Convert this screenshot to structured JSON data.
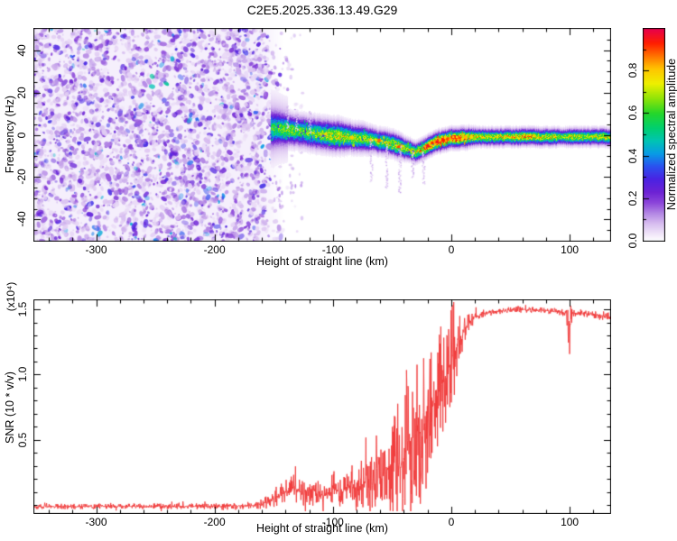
{
  "title": "C2E5.2025.336.13.49.G29",
  "colors": {
    "signal_red": "#f13a3a",
    "axis": "#000000",
    "background": "#ffffff",
    "noise_wash": "#f5effc"
  },
  "colormap_stops": [
    [
      0.0,
      "#ffffff"
    ],
    [
      0.03,
      "#f2e9fa"
    ],
    [
      0.08,
      "#d9bff0"
    ],
    [
      0.13,
      "#b388e4"
    ],
    [
      0.18,
      "#8c46da"
    ],
    [
      0.23,
      "#6d22d4"
    ],
    [
      0.29,
      "#4b22e2"
    ],
    [
      0.35,
      "#2b50f0"
    ],
    [
      0.41,
      "#089ae6"
    ],
    [
      0.47,
      "#00c4b4"
    ],
    [
      0.53,
      "#00cf70"
    ],
    [
      0.6,
      "#25d62a"
    ],
    [
      0.67,
      "#8fe408"
    ],
    [
      0.74,
      "#eef000"
    ],
    [
      0.81,
      "#ffc400"
    ],
    [
      0.87,
      "#ff7300"
    ],
    [
      0.93,
      "#ff1e00"
    ],
    [
      1.0,
      "#e60050"
    ]
  ],
  "chart_data": [
    {
      "type": "heatmap",
      "title": "C2E5.2025.336.13.49.G29",
      "xlabel": "Height of straight line (km)",
      "ylabel": "Frequency (Hz)",
      "colorbar_label": "Normalized spectral amplitude",
      "xlim": [
        -353,
        135
      ],
      "ylim": [
        -50.5,
        50.5
      ],
      "x_tick_labels": [
        "-300",
        "-200",
        "-100",
        "0",
        "100"
      ],
      "x_tick_values": [
        -300,
        -200,
        -100,
        0,
        100
      ],
      "x_minor_step": 20,
      "y_tick_labels": [
        "40",
        "20",
        "0",
        "-20",
        "-40"
      ],
      "y_tick_values": [
        40,
        20,
        0,
        -20,
        -40
      ],
      "y_minor_step": 5,
      "grid": false,
      "legend_position": "right-colorbar",
      "colorbar_tick_labels": [
        "0.0",
        "0.2",
        "0.4",
        "0.6",
        "0.8"
      ],
      "colorbar_tick_values": [
        0.0,
        0.2,
        0.4,
        0.6,
        0.8
      ],
      "colorbar_minor_step": 0.1,
      "colorbar_range": [
        0,
        1
      ],
      "noise_region": {
        "x_range_km": [
          -353,
          -148
        ],
        "freq_range_hz": [
          -50.5,
          50.5
        ],
        "amplitude_range": [
          0.02,
          0.35
        ]
      },
      "signal_band": {
        "x_km": [
          -152,
          -145,
          -135,
          -125,
          -115,
          -105,
          -95,
          -85,
          -75,
          -65,
          -55,
          -45,
          -38,
          -30,
          -25,
          -18,
          -12,
          -5,
          0,
          5,
          10,
          15,
          22,
          35,
          50,
          60,
          68,
          78,
          88,
          93,
          100,
          115,
          128,
          135
        ],
        "center_hz": [
          3,
          3,
          2.5,
          1.5,
          0.5,
          0,
          -0.5,
          -1,
          -1.5,
          -2.5,
          -3.5,
          -5,
          -6.5,
          -8,
          -7,
          -4.5,
          -3,
          -2,
          -1.5,
          -1.5,
          -1.2,
          -1,
          -1,
          -0.9,
          -0.8,
          -0.8,
          -0.8,
          -0.8,
          -0.8,
          -0.8,
          -0.8,
          -0.8,
          -0.8,
          -0.8
        ],
        "peak_amplitude": [
          0.45,
          0.5,
          0.55,
          0.5,
          0.55,
          0.6,
          0.62,
          0.58,
          0.55,
          0.55,
          0.6,
          0.65,
          0.6,
          0.62,
          0.7,
          0.85,
          0.9,
          0.85,
          0.82,
          0.88,
          0.78,
          0.72,
          0.62,
          0.6,
          0.63,
          0.72,
          0.68,
          0.6,
          0.63,
          0.48,
          0.62,
          0.55,
          0.62,
          0.58
        ],
        "halfwidth_hz": [
          5,
          4.5,
          4,
          4,
          4,
          4,
          4,
          3.5,
          3.5,
          3,
          3,
          3,
          2.6,
          2.5,
          2.5,
          2.5,
          2.5,
          2.5,
          2.5,
          2.5,
          2.5,
          2.4,
          2.2,
          2.2,
          2.2,
          2.2,
          2.2,
          2.2,
          2.2,
          2,
          2.2,
          2.2,
          2.2,
          2.2
        ]
      },
      "hot_spots": [
        [
          -106,
          0.78
        ],
        [
          -84,
          0.8
        ],
        [
          -68,
          0.8
        ],
        [
          -61,
          0.88
        ],
        [
          -44,
          0.9
        ],
        [
          -20,
          0.95
        ],
        [
          -16,
          0.93
        ],
        [
          -12,
          0.95
        ],
        [
          -7,
          0.93
        ],
        [
          -3,
          0.9
        ],
        [
          1,
          0.95
        ],
        [
          4,
          0.93
        ],
        [
          7,
          0.9
        ],
        [
          12,
          0.82
        ],
        [
          17,
          0.78
        ]
      ],
      "purple_streaks": [
        [
          -139,
          14
        ],
        [
          -131,
          10
        ],
        [
          -120,
          12
        ],
        [
          -68,
          -22
        ],
        [
          -55,
          -25
        ],
        [
          -44,
          -27
        ],
        [
          -33,
          -20
        ],
        [
          -24,
          -23
        ]
      ]
    },
    {
      "type": "line",
      "xlabel": "Height of straight line (km)",
      "ylabel": "SNR (10 * v/v)",
      "scale_note": "(x10⁴)",
      "xlim": [
        -353,
        135
      ],
      "ylim": [
        -0.066,
        1.576
      ],
      "x_tick_labels": [
        "-300",
        "-200",
        "-100",
        "0",
        "100"
      ],
      "x_tick_values": [
        -300,
        -200,
        -100,
        0,
        100
      ],
      "x_minor_step": 20,
      "y_tick_labels": [
        "0.5",
        "1.0",
        "1.5"
      ],
      "y_tick_values": [
        0.5,
        1.0,
        1.5
      ],
      "y_minor_step": 0.1,
      "grid": false,
      "series": [
        {
          "name": "SNR",
          "color": "#f13a3a",
          "x_km": [
            -353,
            -300,
            -250,
            -200,
            -180,
            -165,
            -155,
            -148,
            -140,
            -133,
            -126,
            -120,
            -114,
            -108,
            -100,
            -93,
            -86,
            -80,
            -72,
            -65,
            -58,
            -52,
            -46,
            -42,
            -38,
            -34,
            -30,
            -26,
            -22,
            -18,
            -14,
            -10,
            -6,
            -2,
            2,
            6,
            10,
            15,
            20,
            30,
            45,
            60,
            75,
            90,
            97,
            100,
            102,
            110,
            120,
            135
          ],
          "mean": [
            -0.01,
            -0.008,
            -0.008,
            -0.008,
            -0.005,
            0.0,
            0.025,
            0.06,
            0.1,
            0.13,
            0.09,
            0.14,
            0.1,
            0.07,
            0.13,
            0.09,
            0.16,
            0.11,
            0.2,
            0.14,
            0.25,
            0.3,
            0.35,
            0.28,
            0.45,
            0.5,
            0.55,
            0.48,
            0.6,
            0.7,
            0.8,
            0.9,
            0.95,
            1.05,
            1.15,
            1.25,
            1.33,
            1.4,
            1.44,
            1.47,
            1.49,
            1.5,
            1.49,
            1.48,
            1.47,
            1.35,
            1.47,
            1.47,
            1.46,
            1.44
          ],
          "spike_amplitude": [
            0.02,
            0.022,
            0.022,
            0.022,
            0.025,
            0.03,
            0.05,
            0.07,
            0.1,
            0.13,
            0.1,
            0.14,
            0.12,
            0.08,
            0.16,
            0.1,
            0.2,
            0.15,
            0.25,
            0.2,
            0.3,
            0.35,
            0.45,
            0.35,
            0.5,
            0.55,
            0.6,
            0.55,
            0.6,
            0.55,
            0.5,
            0.45,
            0.5,
            0.45,
            0.35,
            0.25,
            0.12,
            0.07,
            0.05,
            0.03,
            0.025,
            0.025,
            0.025,
            0.03,
            0.03,
            0.22,
            0.03,
            0.03,
            0.03,
            0.04
          ]
        }
      ]
    }
  ]
}
